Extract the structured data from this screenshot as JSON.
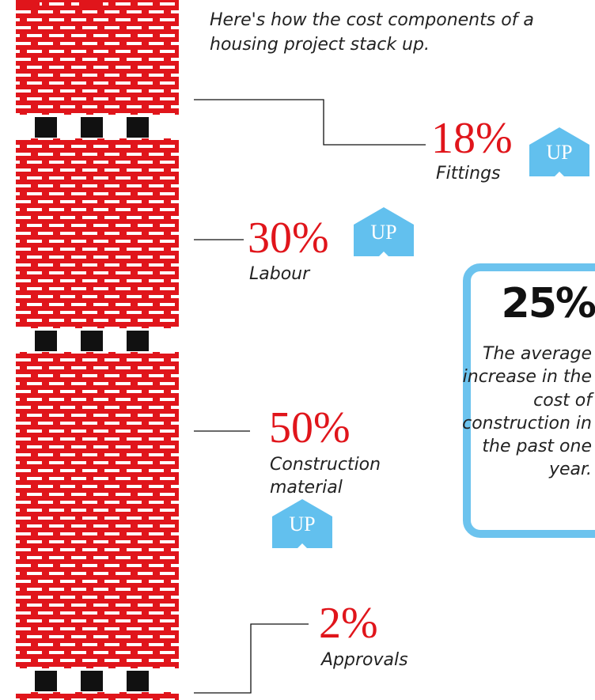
{
  "intro": "Here's how the cost components of a housing project stack up.",
  "components": [
    {
      "pct": "18%",
      "label": "Fittings",
      "trend": "UP"
    },
    {
      "pct": "30%",
      "label": "Labour",
      "trend": "UP"
    },
    {
      "pct": "50%",
      "label": "Construction material",
      "trend": "UP"
    },
    {
      "pct": "2%",
      "label": "Approvals"
    }
  ],
  "callout": {
    "value": "25%",
    "text": "The average increase in the cost of construction in the past one year."
  },
  "colors": {
    "brick": "#e0151b",
    "up_badge": "#62c0ee",
    "callout_border": "#6cc3ee",
    "mortar": "#ffffff",
    "band": "#111111"
  }
}
